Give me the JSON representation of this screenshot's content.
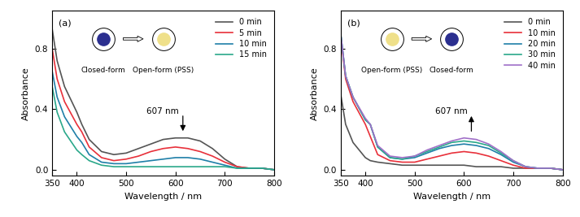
{
  "chart_data": [
    {
      "type": "line",
      "panel_label": "(a)",
      "x_label": "Wavelength / nm",
      "y_label": "Absorbance",
      "xlim": [
        350,
        800
      ],
      "xticks": [
        350,
        400,
        500,
        600,
        700,
        800
      ],
      "ylim": [
        -0.04,
        1.05
      ],
      "yticks": [
        {
          "value": 0,
          "label": "0.0"
        },
        {
          "value": 0.4,
          "label": "0.4"
        },
        {
          "value": 0.8,
          "label": "0.8"
        }
      ],
      "legend": "upper right",
      "annotations": [
        {
          "text": "607 nm",
          "x": 607
        }
      ],
      "icons": [
        {
          "label": "Closed-form",
          "color": "#2b2f8f"
        },
        {
          "label": "Open-form (PSS)",
          "color": "#efe08a"
        }
      ],
      "x": [
        350,
        360,
        375,
        400,
        410,
        425,
        450,
        475,
        500,
        525,
        550,
        575,
        600,
        625,
        650,
        675,
        700,
        725,
        750,
        775,
        800
      ],
      "series": [
        {
          "name": "0 min",
          "color": "#555555",
          "values": [
            0.93,
            0.72,
            0.55,
            0.38,
            0.3,
            0.2,
            0.12,
            0.1,
            0.11,
            0.14,
            0.17,
            0.2,
            0.21,
            0.21,
            0.19,
            0.14,
            0.07,
            0.02,
            0.01,
            0.01,
            0.0
          ]
        },
        {
          "name": "5 min",
          "color": "#e8303a",
          "values": [
            0.8,
            0.6,
            0.45,
            0.3,
            0.25,
            0.15,
            0.08,
            0.06,
            0.07,
            0.09,
            0.12,
            0.14,
            0.15,
            0.14,
            0.12,
            0.09,
            0.05,
            0.02,
            0.01,
            0.01,
            0.0
          ]
        },
        {
          "name": "10 min",
          "color": "#1f7fa8",
          "values": [
            0.65,
            0.48,
            0.35,
            0.22,
            0.18,
            0.1,
            0.05,
            0.04,
            0.04,
            0.05,
            0.06,
            0.07,
            0.08,
            0.08,
            0.07,
            0.05,
            0.03,
            0.01,
            0.01,
            0.01,
            0.0
          ]
        },
        {
          "name": "15 min",
          "color": "#2aa88a",
          "values": [
            0.55,
            0.38,
            0.25,
            0.13,
            0.1,
            0.06,
            0.03,
            0.02,
            0.02,
            0.02,
            0.02,
            0.02,
            0.02,
            0.02,
            0.02,
            0.02,
            0.02,
            0.01,
            0.01,
            0.01,
            0.0
          ]
        }
      ]
    },
    {
      "type": "line",
      "panel_label": "(b)",
      "x_label": "Wavelength / nm",
      "y_label": "Absorbance",
      "xlim": [
        350,
        800
      ],
      "xticks": [
        350,
        400,
        500,
        600,
        700,
        800
      ],
      "ylim": [
        -0.04,
        1.05
      ],
      "yticks": [
        {
          "value": 0,
          "label": "0.0"
        },
        {
          "value": 0.4,
          "label": "0.4"
        },
        {
          "value": 0.8,
          "label": "0.8"
        }
      ],
      "legend": "upper right",
      "annotations": [
        {
          "text": "607 nm",
          "x": 607
        }
      ],
      "icons": [
        {
          "label": "Open-form (PSS)",
          "color": "#efe08a"
        },
        {
          "label": "Closed-form",
          "color": "#2b2f8f"
        }
      ],
      "x": [
        350,
        360,
        375,
        400,
        410,
        425,
        450,
        475,
        500,
        525,
        550,
        575,
        600,
        625,
        650,
        675,
        700,
        725,
        750,
        775,
        800
      ],
      "series": [
        {
          "name": "0 min",
          "color": "#555555",
          "values": [
            0.5,
            0.3,
            0.18,
            0.08,
            0.06,
            0.05,
            0.04,
            0.03,
            0.03,
            0.03,
            0.03,
            0.03,
            0.03,
            0.02,
            0.02,
            0.02,
            0.01,
            0.01,
            0.01,
            0.01,
            0.0
          ]
        },
        {
          "name": "10 min",
          "color": "#e8303a",
          "values": [
            0.88,
            0.6,
            0.45,
            0.3,
            0.22,
            0.1,
            0.06,
            0.05,
            0.05,
            0.07,
            0.09,
            0.11,
            0.12,
            0.11,
            0.09,
            0.06,
            0.03,
            0.01,
            0.01,
            0.01,
            0.0
          ]
        },
        {
          "name": "20 min",
          "color": "#1f7fa8",
          "values": [
            0.9,
            0.62,
            0.48,
            0.33,
            0.3,
            0.15,
            0.08,
            0.07,
            0.08,
            0.11,
            0.14,
            0.16,
            0.17,
            0.16,
            0.14,
            0.1,
            0.05,
            0.02,
            0.01,
            0.01,
            0.0
          ]
        },
        {
          "name": "30 min",
          "color": "#2aa88a",
          "values": [
            0.9,
            0.62,
            0.48,
            0.33,
            0.3,
            0.15,
            0.08,
            0.07,
            0.09,
            0.12,
            0.15,
            0.18,
            0.19,
            0.18,
            0.16,
            0.11,
            0.06,
            0.02,
            0.01,
            0.01,
            0.0
          ]
        },
        {
          "name": "40 min",
          "color": "#a070c8",
          "values": [
            0.9,
            0.62,
            0.48,
            0.34,
            0.3,
            0.16,
            0.09,
            0.08,
            0.09,
            0.13,
            0.16,
            0.19,
            0.21,
            0.2,
            0.17,
            0.12,
            0.06,
            0.02,
            0.01,
            0.01,
            0.0
          ]
        }
      ]
    }
  ]
}
